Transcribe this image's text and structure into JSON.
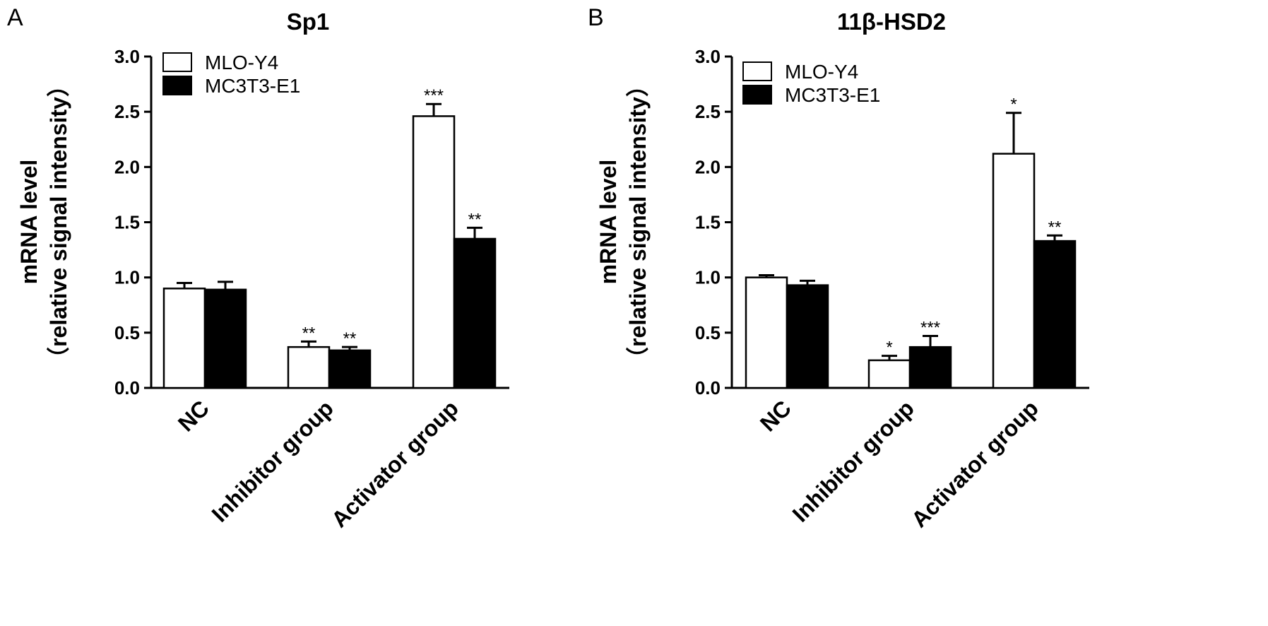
{
  "figure": {
    "background": "#ffffff",
    "series_colors": {
      "MLO-Y4": "#ffffff",
      "MC3T3-E1": "#000000"
    }
  },
  "chart_data": [
    {
      "panel": "A",
      "type": "bar",
      "title": "Sp1",
      "ylabel_line1": "mRNA level",
      "ylabel_line2": "（relative signal intensity）",
      "xlabel": "",
      "categories": [
        "NC",
        "Inhibitor group",
        "Activator group"
      ],
      "ylim": [
        0,
        3.0
      ],
      "yticks": [
        "0.0",
        "0.5",
        "1.0",
        "1.5",
        "2.0",
        "2.5",
        "3.0"
      ],
      "legend_position": "top-left",
      "series": [
        {
          "name": "MLO-Y4",
          "color": "#ffffff",
          "values": [
            0.9,
            0.37,
            2.46
          ],
          "errors": [
            0.05,
            0.05,
            0.11
          ],
          "significance": [
            "",
            "**",
            "***"
          ]
        },
        {
          "name": "MC3T3-E1",
          "color": "#000000",
          "values": [
            0.89,
            0.34,
            1.35
          ],
          "errors": [
            0.07,
            0.03,
            0.1
          ],
          "significance": [
            "",
            "**",
            "**"
          ]
        }
      ]
    },
    {
      "panel": "B",
      "type": "bar",
      "title": "11β-HSD2",
      "ylabel_line1": "mRNA level",
      "ylabel_line2": "（relative signal intensity）",
      "xlabel": "",
      "categories": [
        "NC",
        "Inhibitor group",
        "Activator group"
      ],
      "ylim": [
        0,
        3.0
      ],
      "yticks": [
        "0.0",
        "0.5",
        "1.0",
        "1.5",
        "2.0",
        "2.5",
        "3.0"
      ],
      "legend_position": "top-left",
      "series": [
        {
          "name": "MLO-Y4",
          "color": "#ffffff",
          "values": [
            1.0,
            0.25,
            2.12
          ],
          "errors": [
            0.02,
            0.04,
            0.37
          ],
          "significance": [
            "",
            "*",
            "*"
          ]
        },
        {
          "name": "MC3T3-E1",
          "color": "#000000",
          "values": [
            0.93,
            0.37,
            1.33
          ],
          "errors": [
            0.04,
            0.1,
            0.05
          ],
          "significance": [
            "",
            "***",
            "**"
          ]
        }
      ]
    }
  ]
}
